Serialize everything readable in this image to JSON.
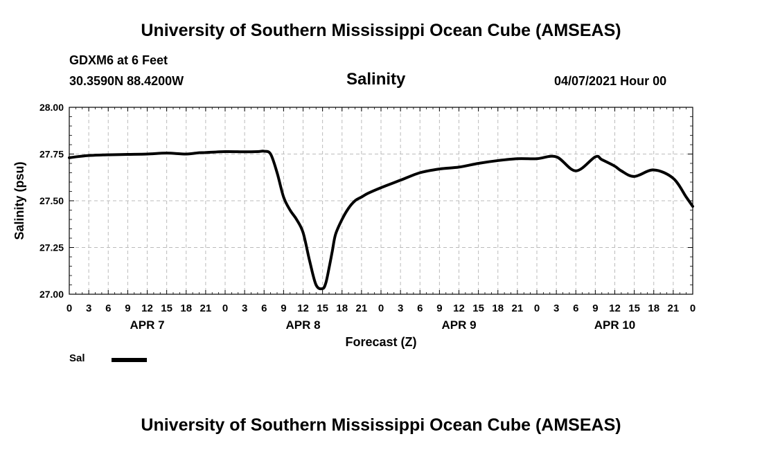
{
  "header": {
    "title": "University of Southern Mississippi Ocean Cube (AMSEAS)",
    "station": "GDXM6 at 6 Feet",
    "coords": "30.3590N  88.4200W",
    "subtitle": "Salinity",
    "datetime": "04/07/2021 Hour 00"
  },
  "footer": {
    "title": "University of Southern Mississippi Ocean Cube (AMSEAS)"
  },
  "legend": {
    "label": "Sal"
  },
  "colors": {
    "line": "#000000",
    "grid": "#bbbbbb"
  },
  "chart_data": {
    "type": "line",
    "title": "Salinity",
    "xlabel": "Forecast (Z)",
    "ylabel": "Salinity (psu)",
    "xlim": [
      0,
      96
    ],
    "ylim": [
      27.0,
      28.0
    ],
    "grid": true,
    "x_ticks": [
      0,
      3,
      6,
      9,
      12,
      15,
      18,
      21,
      24,
      27,
      30,
      33,
      36,
      39,
      42,
      45,
      48,
      51,
      54,
      57,
      60,
      63,
      66,
      69,
      72,
      75,
      78,
      81,
      84,
      87,
      90,
      93,
      96
    ],
    "x_tick_labels": [
      "0",
      "3",
      "6",
      "9",
      "12",
      "15",
      "18",
      "21",
      "0",
      "3",
      "6",
      "9",
      "12",
      "15",
      "18",
      "21",
      "0",
      "3",
      "6",
      "9",
      "12",
      "15",
      "18",
      "21",
      "0",
      "3",
      "6",
      "9",
      "12",
      "15",
      "18",
      "21",
      "0"
    ],
    "y_ticks": [
      27.0,
      27.25,
      27.5,
      27.75,
      28.0
    ],
    "y_tick_labels": [
      "27.00",
      "27.25",
      "27.50",
      "27.75",
      "28.00"
    ],
    "day_labels": [
      {
        "label": "APR 7",
        "x": 12
      },
      {
        "label": "APR 8",
        "x": 36
      },
      {
        "label": "APR 9",
        "x": 60
      },
      {
        "label": "APR 10",
        "x": 84
      }
    ],
    "series": [
      {
        "name": "Sal",
        "x": [
          0,
          1,
          3,
          5,
          6,
          9,
          12,
          15,
          18,
          20,
          21,
          24,
          27,
          29,
          30,
          31,
          32,
          33,
          34,
          35,
          36,
          37,
          38,
          39,
          39.5,
          40,
          40.5,
          41,
          42,
          43,
          44,
          45,
          46,
          48,
          51,
          54,
          57,
          60,
          63,
          66,
          69,
          72,
          75,
          78,
          81,
          82,
          84,
          85,
          87,
          90,
          93,
          95,
          96
        ],
        "y": [
          27.73,
          27.735,
          27.742,
          27.745,
          27.746,
          27.748,
          27.75,
          27.755,
          27.75,
          27.757,
          27.758,
          27.763,
          27.762,
          27.763,
          27.765,
          27.75,
          27.65,
          27.52,
          27.45,
          27.4,
          27.33,
          27.18,
          27.05,
          27.03,
          27.06,
          27.14,
          27.23,
          27.32,
          27.4,
          27.46,
          27.5,
          27.52,
          27.54,
          27.57,
          27.61,
          27.65,
          27.67,
          27.68,
          27.7,
          27.715,
          27.725,
          27.725,
          27.735,
          27.66,
          27.735,
          27.72,
          27.685,
          27.66,
          27.63,
          27.665,
          27.62,
          27.52,
          27.47
        ]
      }
    ]
  }
}
